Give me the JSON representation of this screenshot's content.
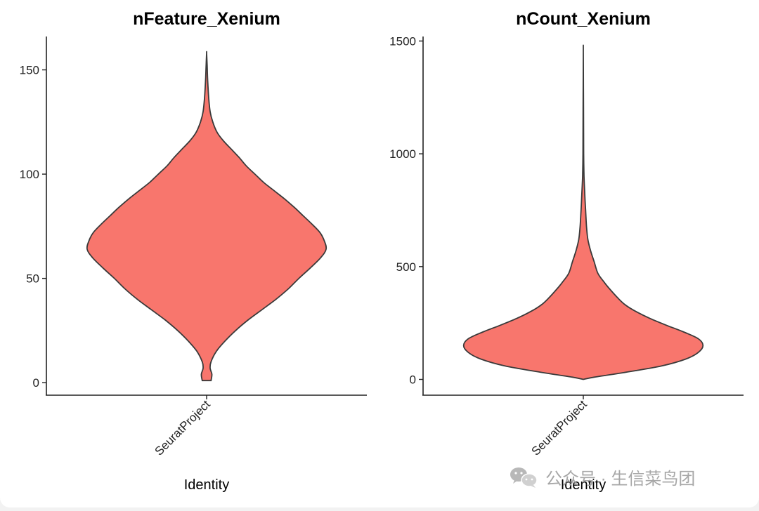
{
  "chart_data": [
    {
      "type": "violin",
      "title": "nFeature_Xenium",
      "xlabel": "Identity",
      "ylabel": "",
      "categories": [
        "SeuratProject"
      ],
      "ylim": [
        -6,
        166
      ],
      "yticks": [
        0,
        50,
        100,
        150
      ],
      "fill_color": "#F8766D",
      "outline_color": "#3a3a3a",
      "density_profile": [
        {
          "value": 1,
          "halfwidth": 0.05
        },
        {
          "value": 4,
          "halfwidth": 0.06
        },
        {
          "value": 7,
          "halfwidth": 0.04
        },
        {
          "value": 10,
          "halfwidth": 0.05
        },
        {
          "value": 15,
          "halfwidth": 0.11
        },
        {
          "value": 20,
          "halfwidth": 0.21
        },
        {
          "value": 25,
          "halfwidth": 0.33
        },
        {
          "value": 30,
          "halfwidth": 0.47
        },
        {
          "value": 35,
          "halfwidth": 0.63
        },
        {
          "value": 40,
          "halfwidth": 0.79
        },
        {
          "value": 45,
          "halfwidth": 0.93
        },
        {
          "value": 50,
          "halfwidth": 1.05
        },
        {
          "value": 55,
          "halfwidth": 1.18
        },
        {
          "value": 60,
          "halfwidth": 1.3
        },
        {
          "value": 64,
          "halfwidth": 1.36
        },
        {
          "value": 68,
          "halfwidth": 1.34
        },
        {
          "value": 72,
          "halfwidth": 1.29
        },
        {
          "value": 76,
          "halfwidth": 1.2
        },
        {
          "value": 80,
          "halfwidth": 1.1
        },
        {
          "value": 84,
          "halfwidth": 1.0
        },
        {
          "value": 88,
          "halfwidth": 0.89
        },
        {
          "value": 92,
          "halfwidth": 0.77
        },
        {
          "value": 96,
          "halfwidth": 0.65
        },
        {
          "value": 100,
          "halfwidth": 0.55
        },
        {
          "value": 104,
          "halfwidth": 0.45
        },
        {
          "value": 108,
          "halfwidth": 0.37
        },
        {
          "value": 112,
          "halfwidth": 0.28
        },
        {
          "value": 116,
          "halfwidth": 0.19
        },
        {
          "value": 120,
          "halfwidth": 0.12
        },
        {
          "value": 125,
          "halfwidth": 0.07
        },
        {
          "value": 130,
          "halfwidth": 0.04
        },
        {
          "value": 136,
          "halfwidth": 0.025
        },
        {
          "value": 145,
          "halfwidth": 0.012
        },
        {
          "value": 152,
          "halfwidth": 0.006
        },
        {
          "value": 158,
          "halfwidth": 0.0
        }
      ]
    },
    {
      "type": "violin",
      "title": "nCount_Xenium",
      "xlabel": "Identity",
      "ylabel": "",
      "categories": [
        "SeuratProject"
      ],
      "ylim": [
        -70,
        1520
      ],
      "yticks": [
        0,
        500,
        1000,
        1500
      ],
      "fill_color": "#F8766D",
      "outline_color": "#3a3a3a",
      "density_profile": [
        {
          "value": 0,
          "halfwidth": 0.0
        },
        {
          "value": 10,
          "halfwidth": 0.12
        },
        {
          "value": 30,
          "halfwidth": 0.44
        },
        {
          "value": 60,
          "halfwidth": 0.86
        },
        {
          "value": 90,
          "halfwidth": 1.12
        },
        {
          "value": 120,
          "halfwidth": 1.26
        },
        {
          "value": 150,
          "halfwidth": 1.31
        },
        {
          "value": 180,
          "halfwidth": 1.26
        },
        {
          "value": 210,
          "halfwidth": 1.1
        },
        {
          "value": 240,
          "halfwidth": 0.91
        },
        {
          "value": 270,
          "halfwidth": 0.73
        },
        {
          "value": 300,
          "halfwidth": 0.58
        },
        {
          "value": 330,
          "halfwidth": 0.46
        },
        {
          "value": 360,
          "halfwidth": 0.38
        },
        {
          "value": 400,
          "halfwidth": 0.29
        },
        {
          "value": 430,
          "halfwidth": 0.23
        },
        {
          "value": 470,
          "halfwidth": 0.16
        },
        {
          "value": 520,
          "halfwidth": 0.12
        },
        {
          "value": 570,
          "halfwidth": 0.08
        },
        {
          "value": 620,
          "halfwidth": 0.05
        },
        {
          "value": 680,
          "halfwidth": 0.035
        },
        {
          "value": 750,
          "halfwidth": 0.025
        },
        {
          "value": 830,
          "halfwidth": 0.015
        },
        {
          "value": 900,
          "halfwidth": 0.008
        },
        {
          "value": 1000,
          "halfwidth": 0.004
        },
        {
          "value": 1200,
          "halfwidth": 0.002
        },
        {
          "value": 1450,
          "halfwidth": 0.0
        }
      ]
    }
  ],
  "watermark": {
    "icon": "wechat-icon",
    "text": "公众号 · 生信菜鸟团"
  }
}
